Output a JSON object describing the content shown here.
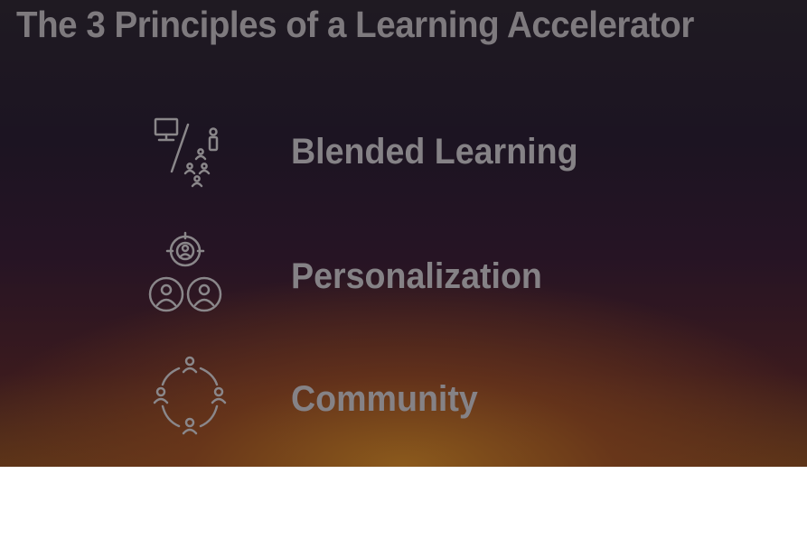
{
  "slide": {
    "title": "The 3 Principles of a Learning Accelerator",
    "principles": [
      {
        "label": "Blended Learning",
        "icon": "computer-and-people-icon"
      },
      {
        "label": "Personalization",
        "icon": "target-people-icon"
      },
      {
        "label": "Community",
        "icon": "people-circle-icon"
      }
    ]
  },
  "colors": {
    "title_text": "#7e7a7e",
    "label_text": "#858286",
    "icon_stroke": "#8a878a",
    "background_top": "#1f1a22",
    "background_bottom_glow": "#8e5c1c"
  }
}
